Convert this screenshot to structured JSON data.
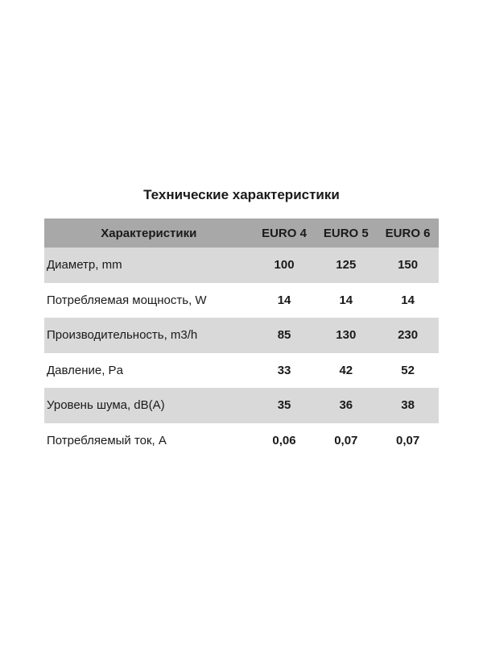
{
  "title": "Технические характеристики",
  "header": [
    "Характеристики",
    "EURO 4",
    "EURO 5",
    "EURO 6"
  ],
  "rows": [
    {
      "label": "Диаметр, mm",
      "values": [
        "100",
        "125",
        "150"
      ]
    },
    {
      "label": "Потребляемая мощность, W",
      "values": [
        "14",
        "14",
        "14"
      ]
    },
    {
      "label": "Производительность, m3/h",
      "values": [
        "85",
        "130",
        "230"
      ]
    },
    {
      "label": "Давление, Pa",
      "values": [
        "33",
        "42",
        "52"
      ]
    },
    {
      "label": "Уровень шума, dB(A)",
      "values": [
        "35",
        "36",
        "38"
      ]
    },
    {
      "label": "Потребляемый ток, A",
      "values": [
        "0,06",
        "0,07",
        "0,07"
      ]
    }
  ],
  "colors": {
    "header_bg": "#a8a8a8",
    "shade_bg": "#d9d9d9"
  }
}
